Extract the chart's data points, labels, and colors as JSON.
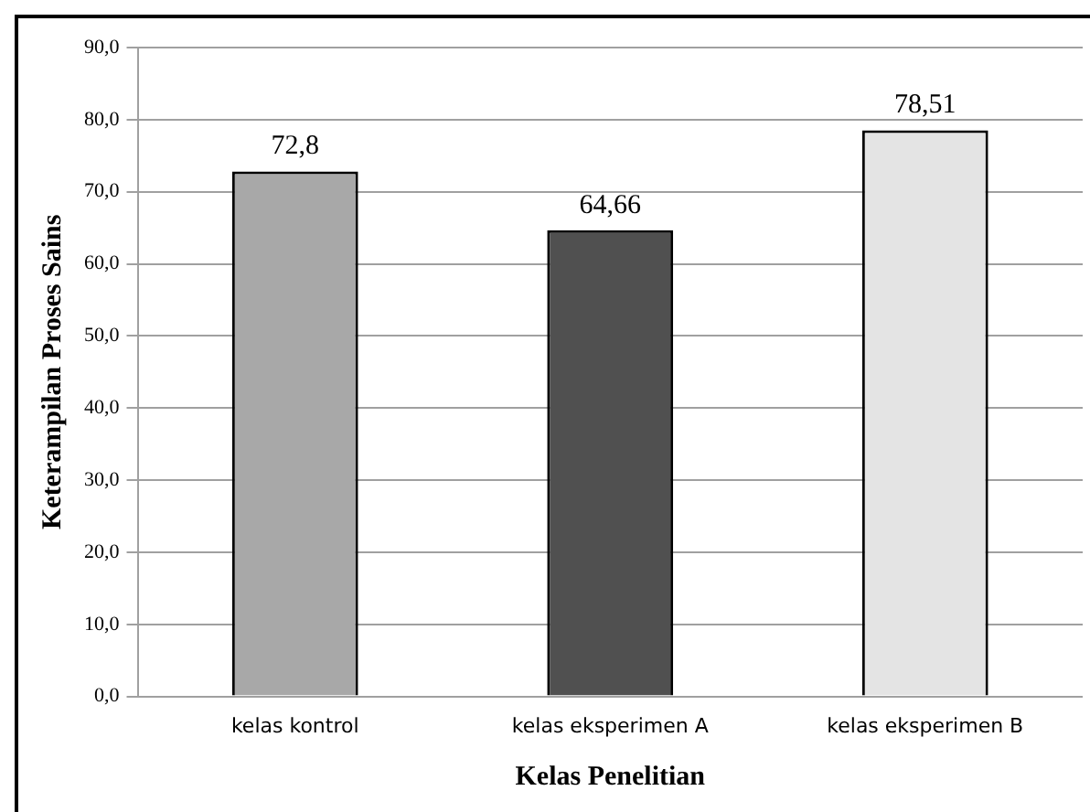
{
  "chart_data": {
    "type": "bar",
    "xlabel": "Kelas Penelitian",
    "ylabel": "Keterampilan Proses Sains",
    "categories": [
      "kelas kontrol",
      "kelas eksperimen A",
      "kelas eksperimen B"
    ],
    "values": [
      72.8,
      64.66,
      78.51
    ],
    "value_labels": [
      "72,8",
      "64,66",
      "78,51"
    ],
    "colors": [
      "#a8a8a8",
      "#505050",
      "#e4e4e4"
    ],
    "ylim": [
      0,
      90
    ],
    "yticks": [
      {
        "value": 0,
        "label": "0,0"
      },
      {
        "value": 10,
        "label": "10,0"
      },
      {
        "value": 20,
        "label": "20,0"
      },
      {
        "value": 30,
        "label": "30,0"
      },
      {
        "value": 40,
        "label": "40,0"
      },
      {
        "value": 50,
        "label": "50,0"
      },
      {
        "value": 60,
        "label": "60,0"
      },
      {
        "value": 70,
        "label": "70,0"
      },
      {
        "value": 80,
        "label": "80,0"
      },
      {
        "value": 90,
        "label": "90,0"
      }
    ],
    "grid": "y"
  }
}
